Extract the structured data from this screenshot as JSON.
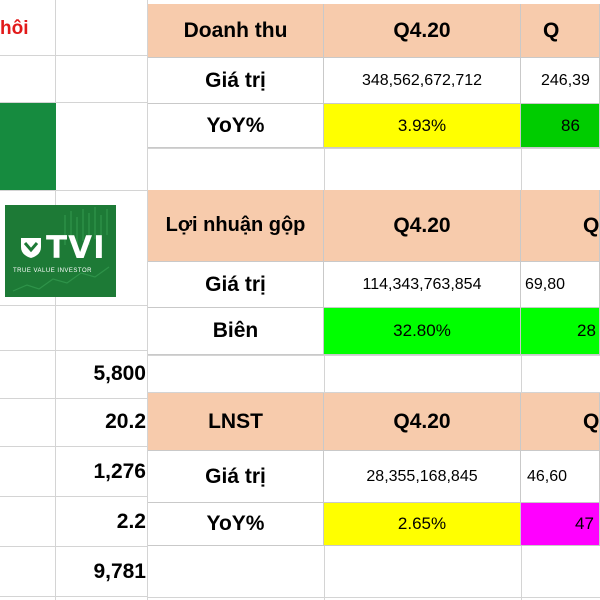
{
  "left_column": {
    "title_fragment": "hôi",
    "values": [
      "5,800",
      "20.2",
      "1,276",
      "2.2",
      "9,781"
    ]
  },
  "logo": {
    "brand": "TVI",
    "tagline": "TRUE VALUE INVESTOR"
  },
  "tables": {
    "revenue": {
      "header": "Doanh thu",
      "col1": "Q4.20",
      "col2": "Q",
      "row1_label": "Giá trị",
      "row1_v1": "348,562,672,712",
      "row1_v2": "246,39",
      "row2_label": "YoY%",
      "row2_v1": "3.93%",
      "row2_v2": "86"
    },
    "gross_profit": {
      "header": "Lợi nhuận gộp",
      "col1": "Q4.20",
      "col2": "Q",
      "row1_label": "Giá trị",
      "row1_v1": "114,343,763,854",
      "row1_v2": "69,80",
      "row2_label": "Biên",
      "row2_v1": "32.80%",
      "row2_v2": "28"
    },
    "net_profit": {
      "header": "LNST",
      "col1": "Q4.20",
      "col2": "Q",
      "row1_label": "Giá trị",
      "row1_v1": "28,355,168,845",
      "row1_v2": "46,60",
      "row2_label": "YoY%",
      "row2_v1": "2.65%",
      "row2_v2": "47"
    }
  },
  "colors": {
    "header_bg": "#f7cbac",
    "yellow": "#ffff00",
    "green": "#00cc00",
    "bright_green": "#00ff00",
    "magenta": "#ff00ff",
    "logo_green": "#1d7a36",
    "title_red": "#e21a1a"
  }
}
